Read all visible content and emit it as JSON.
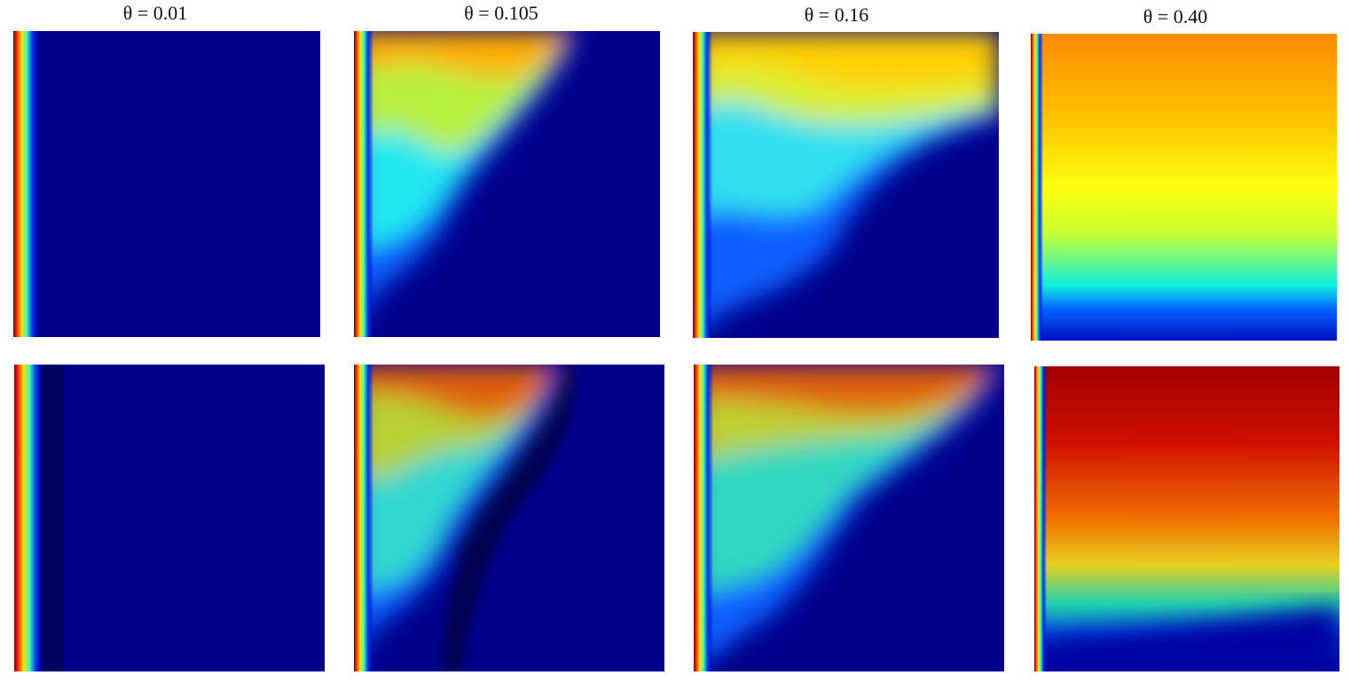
{
  "figure": {
    "titles": [
      "θ = 0.01",
      "θ = 0.105",
      "θ = 0.16",
      "θ = 0.40"
    ]
  }
}
